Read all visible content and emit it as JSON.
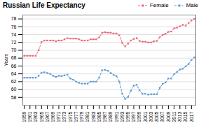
{
  "chart_data": {
    "type": "line",
    "title": "Russian Life Expectancy",
    "ylabel": "Years",
    "x": [
      1959,
      1960,
      1961,
      1962,
      1963,
      1964,
      1965,
      1966,
      1967,
      1968,
      1969,
      1970,
      1971,
      1972,
      1973,
      1974,
      1975,
      1976,
      1977,
      1978,
      1979,
      1980,
      1981,
      1982,
      1983,
      1984,
      1985,
      1986,
      1987,
      1988,
      1989,
      1990,
      1991,
      1992,
      1993,
      1994,
      1995,
      1996,
      1997,
      1998,
      1999,
      2000,
      2001,
      2002,
      2003,
      2004,
      2005,
      2006,
      2007,
      2008,
      2009,
      2010,
      2011,
      2012,
      2013,
      2014,
      2015,
      2016,
      2017,
      2018
    ],
    "series": [
      {
        "name": "Female",
        "color": "#e8687a",
        "marker": "square",
        "line_style": "dashed",
        "values": [
          68.6,
          68.6,
          68.6,
          68.6,
          68.6,
          70.0,
          72.1,
          72.5,
          72.5,
          72.5,
          72.5,
          72.3,
          72.5,
          72.5,
          72.8,
          73.1,
          73.0,
          73.0,
          73.0,
          72.8,
          72.5,
          72.5,
          72.5,
          72.8,
          72.8,
          72.8,
          73.3,
          74.5,
          74.6,
          74.5,
          74.5,
          74.3,
          74.3,
          73.8,
          71.9,
          71.0,
          71.7,
          72.5,
          72.9,
          73.1,
          72.4,
          72.2,
          72.2,
          72.0,
          72.0,
          72.3,
          72.4,
          73.3,
          73.9,
          74.2,
          74.7,
          74.8,
          75.6,
          75.8,
          76.1,
          76.5,
          76.3,
          76.9,
          77.6,
          78.0
        ]
      },
      {
        "name": "Male",
        "color": "#5b9bd5",
        "marker": "square",
        "line_style": "dashed",
        "values": [
          63.0,
          63.0,
          63.0,
          63.0,
          63.0,
          63.5,
          64.3,
          64.4,
          64.2,
          64.0,
          63.5,
          63.2,
          63.5,
          63.4,
          63.6,
          63.8,
          62.8,
          62.5,
          62.0,
          61.7,
          61.5,
          61.5,
          61.5,
          62.0,
          62.0,
          62.0,
          63.0,
          64.9,
          65.0,
          64.8,
          64.2,
          63.7,
          63.4,
          62.0,
          58.9,
          57.6,
          58.1,
          59.7,
          61.0,
          61.2,
          59.8,
          58.9,
          58.9,
          58.7,
          58.8,
          58.8,
          58.8,
          60.4,
          61.4,
          61.8,
          62.8,
          62.8,
          63.9,
          64.5,
          65.1,
          65.3,
          65.9,
          66.5,
          67.5,
          68.2
        ]
      }
    ],
    "xlim": [
      1958.5,
      2018.5
    ],
    "xticks": [
      1959,
      1961,
      1963,
      1965,
      1967,
      1969,
      1971,
      1973,
      1975,
      1977,
      1979,
      1981,
      1983,
      1985,
      1987,
      1989,
      1991,
      1993,
      1995,
      1997,
      1999,
      2001,
      2003,
      2005,
      2007,
      2009,
      2011,
      2013,
      2015,
      2017
    ],
    "ylim": [
      56,
      79
    ],
    "yticks": [
      58,
      60,
      62,
      64,
      66,
      68,
      70,
      72,
      74,
      76,
      78
    ],
    "grid": true,
    "legend": "upper right"
  }
}
